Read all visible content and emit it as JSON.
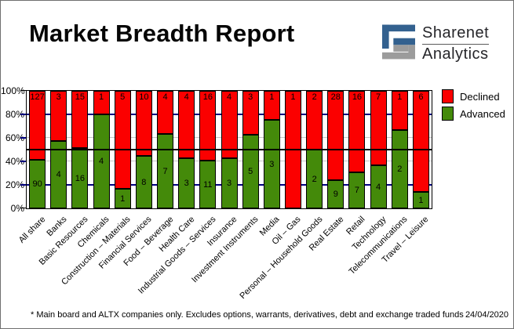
{
  "header": {
    "title": "Market Breadth Report"
  },
  "logo": {
    "name": "Sharenet",
    "sub": "Analytics",
    "blue": "#33618f",
    "gray": "#9c9c9c"
  },
  "footer": {
    "note": "* Main board and ALTX companies only. Excludes options, warrants, derivatives, debt and exchange traded funds",
    "date": "24/04/2020"
  },
  "chart_data": {
    "type": "bar",
    "subtype": "stacked-percent-column",
    "title": "Market Breadth Report",
    "categories": [
      "All share",
      "Banks",
      "Basic Resources",
      "Chemicals",
      "Construction – Materials",
      "Financial Services",
      "Food – Beverage",
      "Health Care",
      "Industrial Goods – Services",
      "Insurance",
      "Investment Instruments",
      "Media",
      "Oil – Gas",
      "Personal – Household Goods",
      "Real Estate",
      "Retail",
      "Technology",
      "Telecommunications",
      "Travel – Leisure"
    ],
    "series": [
      {
        "name": "Declined",
        "color": "#fb0000",
        "values": [
          127,
          3,
          15,
          1,
          5,
          10,
          4,
          4,
          16,
          4,
          3,
          1,
          1,
          2,
          28,
          16,
          7,
          1,
          6
        ]
      },
      {
        "name": "Advanced",
        "color": "#448a0a",
        "values": [
          90,
          4,
          16,
          4,
          1,
          8,
          7,
          3,
          11,
          3,
          5,
          3,
          0,
          2,
          9,
          7,
          4,
          2,
          1
        ]
      }
    ],
    "y_axis": {
      "min": 0,
      "max": 100,
      "unit": "%",
      "ticks": [
        {
          "label": "100%",
          "value": 100
        },
        {
          "label": "80%",
          "value": 80
        },
        {
          "label": "60%",
          "value": 60
        },
        {
          "label": "40%",
          "value": 40
        },
        {
          "label": "20%",
          "value": 20
        },
        {
          "label": "0%",
          "value": 0
        }
      ]
    },
    "gridlines": [
      {
        "value": 80,
        "color": "#000080",
        "thickness": 2
      },
      {
        "value": 60,
        "color": "#c6c6c6",
        "thickness": 1
      },
      {
        "value": 40,
        "color": "#c6c6c6",
        "thickness": 1
      },
      {
        "value": 20,
        "color": "#000080",
        "thickness": 2
      }
    ],
    "reference_line": {
      "value": 50,
      "color": "#000000"
    },
    "legend": {
      "position": "top-right",
      "entries": [
        {
          "label": "Declined",
          "color": "#fb0000"
        },
        {
          "label": "Advanced",
          "color": "#448a0a"
        }
      ]
    },
    "bar_value_labels": "counts shown on each segment; Advanced label omitted when 0"
  }
}
